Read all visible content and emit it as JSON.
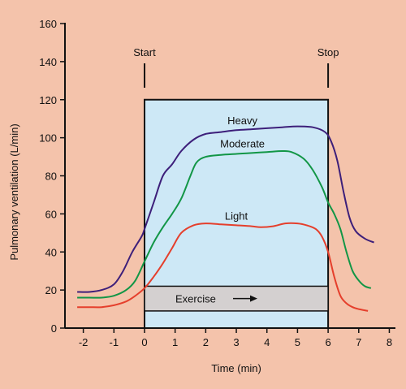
{
  "colors": {
    "background": "#f4c3ab",
    "exercise_box_fill": "#cde8f6",
    "exercise_bar_fill": "#d4d0d0",
    "axis": "#111111",
    "heavy": "#3d1f7a",
    "moderate": "#129646",
    "light": "#e53f2c"
  },
  "annotations": {
    "start": "Start",
    "stop": "Stop",
    "exercise": "Exercise"
  },
  "chart_data": {
    "type": "line",
    "xlabel": "Time (min)",
    "ylabel": "Pulmonary ventilation (L/min)",
    "xlim": [
      -2.6,
      8.2
    ],
    "ylim": [
      0,
      160
    ],
    "x_ticks": [
      -2,
      -1,
      0,
      1,
      2,
      3,
      4,
      5,
      6,
      7,
      8
    ],
    "y_ticks": [
      0,
      20,
      40,
      60,
      80,
      100,
      120,
      140,
      160
    ],
    "exercise_period": {
      "start": 0,
      "stop": 6,
      "top": 120
    },
    "exercise_bar": {
      "low": 9,
      "high": 22
    },
    "series": [
      {
        "name": "Heavy",
        "color_key": "heavy",
        "label_at": [
          3.2,
          107
        ],
        "x": [
          -2.2,
          -1.8,
          -1.4,
          -1.0,
          -0.7,
          -0.4,
          -0.1,
          0.0,
          0.3,
          0.6,
          0.9,
          1.2,
          1.6,
          2.0,
          2.5,
          3.0,
          3.5,
          4.0,
          4.5,
          5.0,
          5.5,
          5.9,
          6.1,
          6.3,
          6.5,
          6.7,
          6.9,
          7.2,
          7.5
        ],
        "y": [
          19,
          19,
          20,
          23,
          30,
          40,
          48,
          52,
          66,
          80,
          86,
          93,
          99,
          102,
          103,
          104,
          104.5,
          105,
          105.5,
          106,
          105.5,
          103,
          98,
          88,
          72,
          58,
          51,
          47,
          45
        ]
      },
      {
        "name": "Moderate",
        "color_key": "moderate",
        "label_at": [
          3.2,
          95
        ],
        "x": [
          -2.2,
          -1.8,
          -1.4,
          -1.0,
          -0.6,
          -0.3,
          0.0,
          0.3,
          0.6,
          0.9,
          1.2,
          1.5,
          1.7,
          2.0,
          2.5,
          3.0,
          3.5,
          4.0,
          4.5,
          4.8,
          5.2,
          5.5,
          5.8,
          6.0,
          6.2,
          6.4,
          6.6,
          6.8,
          7.0,
          7.2,
          7.4
        ],
        "y": [
          16,
          16,
          16,
          17,
          20,
          25,
          35,
          45,
          53,
          60,
          68,
          80,
          87,
          90,
          91,
          91.5,
          92,
          92.5,
          93,
          92.5,
          89,
          83,
          74,
          66,
          60,
          52,
          40,
          30,
          25,
          22,
          21
        ]
      },
      {
        "name": "Light",
        "color_key": "light",
        "label_at": [
          3.0,
          57
        ],
        "x": [
          -2.2,
          -1.8,
          -1.4,
          -1.0,
          -0.6,
          -0.3,
          0.0,
          0.3,
          0.6,
          0.9,
          1.2,
          1.6,
          2.0,
          2.5,
          3.0,
          3.5,
          3.8,
          4.2,
          4.6,
          5.0,
          5.3,
          5.6,
          5.8,
          6.0,
          6.2,
          6.4,
          6.6,
          6.8,
          7.0,
          7.3
        ],
        "y": [
          11,
          11,
          11,
          12,
          14,
          17,
          21,
          27,
          34,
          42,
          50,
          54,
          55,
          54.5,
          54,
          53.5,
          53,
          53.5,
          55,
          55,
          54,
          52,
          48,
          40,
          27,
          17,
          13,
          11,
          10,
          9
        ]
      }
    ]
  }
}
